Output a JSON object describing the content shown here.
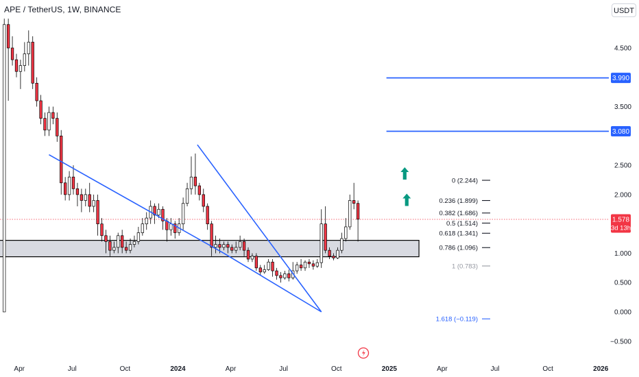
{
  "header": {
    "symbol": "APE / TetherUS, 1W, BINANCE",
    "currency": "USDT"
  },
  "chart_data": {
    "type": "candlestick",
    "title": "APE / TetherUS, 1W, BINANCE",
    "ylim": [
      -0.65,
      5.05
    ],
    "y_ticks": [
      {
        "v": 4.5,
        "label": "4.500"
      },
      {
        "v": 3.5,
        "label": "3.500"
      },
      {
        "v": 2.5,
        "label": "2.500"
      },
      {
        "v": 2.0,
        "label": "2.000"
      },
      {
        "v": 1.0,
        "label": "1.000"
      },
      {
        "v": 0.5,
        "label": "0.500"
      },
      {
        "v": 0.0,
        "label": "0.000"
      },
      {
        "v": -0.5,
        "label": "−0.500"
      }
    ],
    "x_ticks": [
      {
        "week": 0,
        "label": "Apr",
        "bold": false
      },
      {
        "week": 13,
        "label": "Jul",
        "bold": false
      },
      {
        "week": 26,
        "label": "Oct",
        "bold": false
      },
      {
        "week": 39,
        "label": "2024",
        "bold": true
      },
      {
        "week": 52,
        "label": "Apr",
        "bold": false
      },
      {
        "week": 65,
        "label": "Jul",
        "bold": false
      },
      {
        "week": 78,
        "label": "Oct",
        "bold": false
      },
      {
        "week": 91,
        "label": "2025",
        "bold": true
      },
      {
        "week": 104,
        "label": "Apr",
        "bold": false
      },
      {
        "week": 117,
        "label": "Jul",
        "bold": false
      },
      {
        "week": 130,
        "label": "Oct",
        "bold": false
      },
      {
        "week": 143,
        "label": "2026",
        "bold": true
      }
    ],
    "candles": [
      [
        0.0,
        4.9,
        5.0,
        4.8
      ],
      [
        4.9,
        4.5,
        5.0,
        3.6
      ],
      [
        4.5,
        4.3,
        4.7,
        4.2
      ],
      [
        4.3,
        4.1,
        4.4,
        4.0
      ],
      [
        4.1,
        4.2,
        4.3,
        3.8
      ],
      [
        4.2,
        4.4,
        4.6,
        4.1
      ],
      [
        4.4,
        4.6,
        4.8,
        4.2
      ],
      [
        4.6,
        3.9,
        4.7,
        3.8
      ],
      [
        3.9,
        3.6,
        4.0,
        3.5
      ],
      [
        3.6,
        3.3,
        3.7,
        3.2
      ],
      [
        3.3,
        3.1,
        3.4,
        3.0
      ],
      [
        3.1,
        3.4,
        3.5,
        3.0
      ],
      [
        3.4,
        3.3,
        3.5,
        3.2
      ],
      [
        3.3,
        3.0,
        3.4,
        2.9
      ],
      [
        3.0,
        2.2,
        3.1,
        2.0
      ],
      [
        2.2,
        2.0,
        2.3,
        1.9
      ],
      [
        2.0,
        2.3,
        2.4,
        1.9
      ],
      [
        2.3,
        2.1,
        2.5,
        2.0
      ],
      [
        2.1,
        2.0,
        2.2,
        1.8
      ],
      [
        2.0,
        1.9,
        2.1,
        1.7
      ],
      [
        1.9,
        2.0,
        2.1,
        1.8
      ],
      [
        2.0,
        1.8,
        2.2,
        1.7
      ],
      [
        1.8,
        1.9,
        2.0,
        1.7
      ],
      [
        1.9,
        1.5,
        2.0,
        1.3
      ],
      [
        1.5,
        1.3,
        1.6,
        1.2
      ],
      [
        1.3,
        1.2,
        1.4,
        1.0
      ],
      [
        1.2,
        1.05,
        1.3,
        0.95
      ],
      [
        1.05,
        1.1,
        1.2,
        1.0
      ],
      [
        1.1,
        1.3,
        1.35,
        1.0
      ],
      [
        1.3,
        1.1,
        1.4,
        1.0
      ],
      [
        1.1,
        1.05,
        1.2,
        1.0
      ],
      [
        1.05,
        1.15,
        1.25,
        1.0
      ],
      [
        1.15,
        1.2,
        1.3,
        1.1
      ],
      [
        1.2,
        1.35,
        1.45,
        1.15
      ],
      [
        1.35,
        1.5,
        1.6,
        1.3
      ],
      [
        1.5,
        1.6,
        1.7,
        1.4
      ],
      [
        1.6,
        1.8,
        1.9,
        1.5
      ],
      [
        1.8,
        1.65,
        1.85,
        1.5
      ],
      [
        1.65,
        1.75,
        1.85,
        1.6
      ],
      [
        1.75,
        1.55,
        1.8,
        1.4
      ],
      [
        1.55,
        1.4,
        1.6,
        1.2
      ],
      [
        1.4,
        1.5,
        1.6,
        1.3
      ],
      [
        1.5,
        1.35,
        1.55,
        1.25
      ],
      [
        1.35,
        1.5,
        1.6,
        1.3
      ],
      [
        1.5,
        1.85,
        1.95,
        1.4
      ],
      [
        1.85,
        2.1,
        2.2,
        1.8
      ],
      [
        2.1,
        2.3,
        2.65,
        2.0
      ],
      [
        2.3,
        2.15,
        2.7,
        2.0
      ],
      [
        2.15,
        2.0,
        2.2,
        1.9
      ],
      [
        2.0,
        1.8,
        2.1,
        1.7
      ],
      [
        1.8,
        1.5,
        1.85,
        1.4
      ],
      [
        1.5,
        1.1,
        1.55,
        0.95
      ],
      [
        1.1,
        1.15,
        1.3,
        1.0
      ],
      [
        1.15,
        1.1,
        1.25,
        1.0
      ],
      [
        1.1,
        1.15,
        1.2,
        1.05
      ],
      [
        1.15,
        1.1,
        1.2,
        1.0
      ],
      [
        1.1,
        1.05,
        1.15,
        1.0
      ],
      [
        1.05,
        1.1,
        1.2,
        1.0
      ],
      [
        1.1,
        1.2,
        1.3,
        1.05
      ],
      [
        1.2,
        1.05,
        1.25,
        0.95
      ],
      [
        1.05,
        0.9,
        1.1,
        0.85
      ],
      [
        0.9,
        0.95,
        1.0,
        0.85
      ],
      [
        0.95,
        0.75,
        1.0,
        0.7
      ],
      [
        0.75,
        0.68,
        0.8,
        0.62
      ],
      [
        0.68,
        0.72,
        0.8,
        0.65
      ],
      [
        0.72,
        0.85,
        0.9,
        0.7
      ],
      [
        0.85,
        0.7,
        0.9,
        0.6
      ],
      [
        0.7,
        0.62,
        0.75,
        0.55
      ],
      [
        0.62,
        0.58,
        0.68,
        0.5
      ],
      [
        0.58,
        0.65,
        0.7,
        0.55
      ],
      [
        0.65,
        0.58,
        0.72,
        0.52
      ],
      [
        0.58,
        0.7,
        0.85,
        0.55
      ],
      [
        0.7,
        0.8,
        0.85,
        0.65
      ],
      [
        0.8,
        0.75,
        0.9,
        0.7
      ],
      [
        0.75,
        0.85,
        0.88,
        0.7
      ],
      [
        0.85,
        0.82,
        0.9,
        0.75
      ],
      [
        0.82,
        0.78,
        0.88,
        0.72
      ],
      [
        0.78,
        0.84,
        0.9,
        0.75
      ],
      [
        0.84,
        1.5,
        1.75,
        0.75
      ],
      [
        1.5,
        1.05,
        1.8,
        1.0
      ],
      [
        1.05,
        0.95,
        1.1,
        0.9
      ],
      [
        0.95,
        0.92,
        1.0,
        0.88
      ],
      [
        0.92,
        1.05,
        1.1,
        0.9
      ],
      [
        1.05,
        1.25,
        1.35,
        1.0
      ],
      [
        1.25,
        1.45,
        1.6,
        1.2
      ],
      [
        1.45,
        1.9,
        2.0,
        1.4
      ],
      [
        1.9,
        1.85,
        2.2,
        1.75
      ],
      [
        1.85,
        1.58,
        1.9,
        1.2
      ]
    ],
    "support_zone": {
      "top": 1.22,
      "bottom": 0.94,
      "x_start_week": -2,
      "x_end_week": 102
    },
    "current_price": {
      "value": 1.578,
      "label": "1.578",
      "countdown": "3d 13h"
    },
    "horizontal_levels": [
      {
        "value": 3.99,
        "label": "3.990",
        "x_start_week": 94
      },
      {
        "value": 3.08,
        "label": "3.080",
        "x_start_week": 94
      }
    ],
    "trendlines": [
      {
        "from": [
          11.0,
          2.68
        ],
        "to": [
          54.0,
          1.0
        ]
      },
      {
        "from": [
          47.5,
          2.85
        ],
        "to": [
          78.0,
          0.0
        ]
      },
      {
        "from": [
          54.0,
          1.0
        ],
        "to": [
          78.0,
          0.0
        ]
      }
    ],
    "fib_levels": [
      {
        "ratio": "0",
        "label": "0 (2.244)",
        "value": 2.244,
        "color": "#131722"
      },
      {
        "ratio": "0.236",
        "label": "0.236 (1.899)",
        "value": 1.899,
        "color": "#131722"
      },
      {
        "ratio": "0.382",
        "label": "0.382 (1.686)",
        "value": 1.686,
        "color": "#131722"
      },
      {
        "ratio": "0.5",
        "label": "0.5 (1.514)",
        "value": 1.514,
        "color": "#131722"
      },
      {
        "ratio": "0.618",
        "label": "0.618 (1.341)",
        "value": 1.341,
        "color": "#131722"
      },
      {
        "ratio": "0.786",
        "label": "0.786 (1.096)",
        "value": 1.096,
        "color": "#131722"
      },
      {
        "ratio": "1",
        "label": "1 (0.783)",
        "value": 0.783,
        "color": "#9598a1"
      },
      {
        "ratio": "1.618",
        "label": "1.618 (−0.119)",
        "value": -0.119,
        "color": "#2962ff"
      }
    ],
    "arrows": [
      {
        "week": 98.5,
        "value": 2.35
      },
      {
        "week": 99.0,
        "value": 1.9
      }
    ],
    "colors": {
      "up": "#089981",
      "down": "#f23645",
      "line": "#2962ff",
      "zone_fill": "#d1d4dc",
      "price": "#f23645"
    }
  }
}
